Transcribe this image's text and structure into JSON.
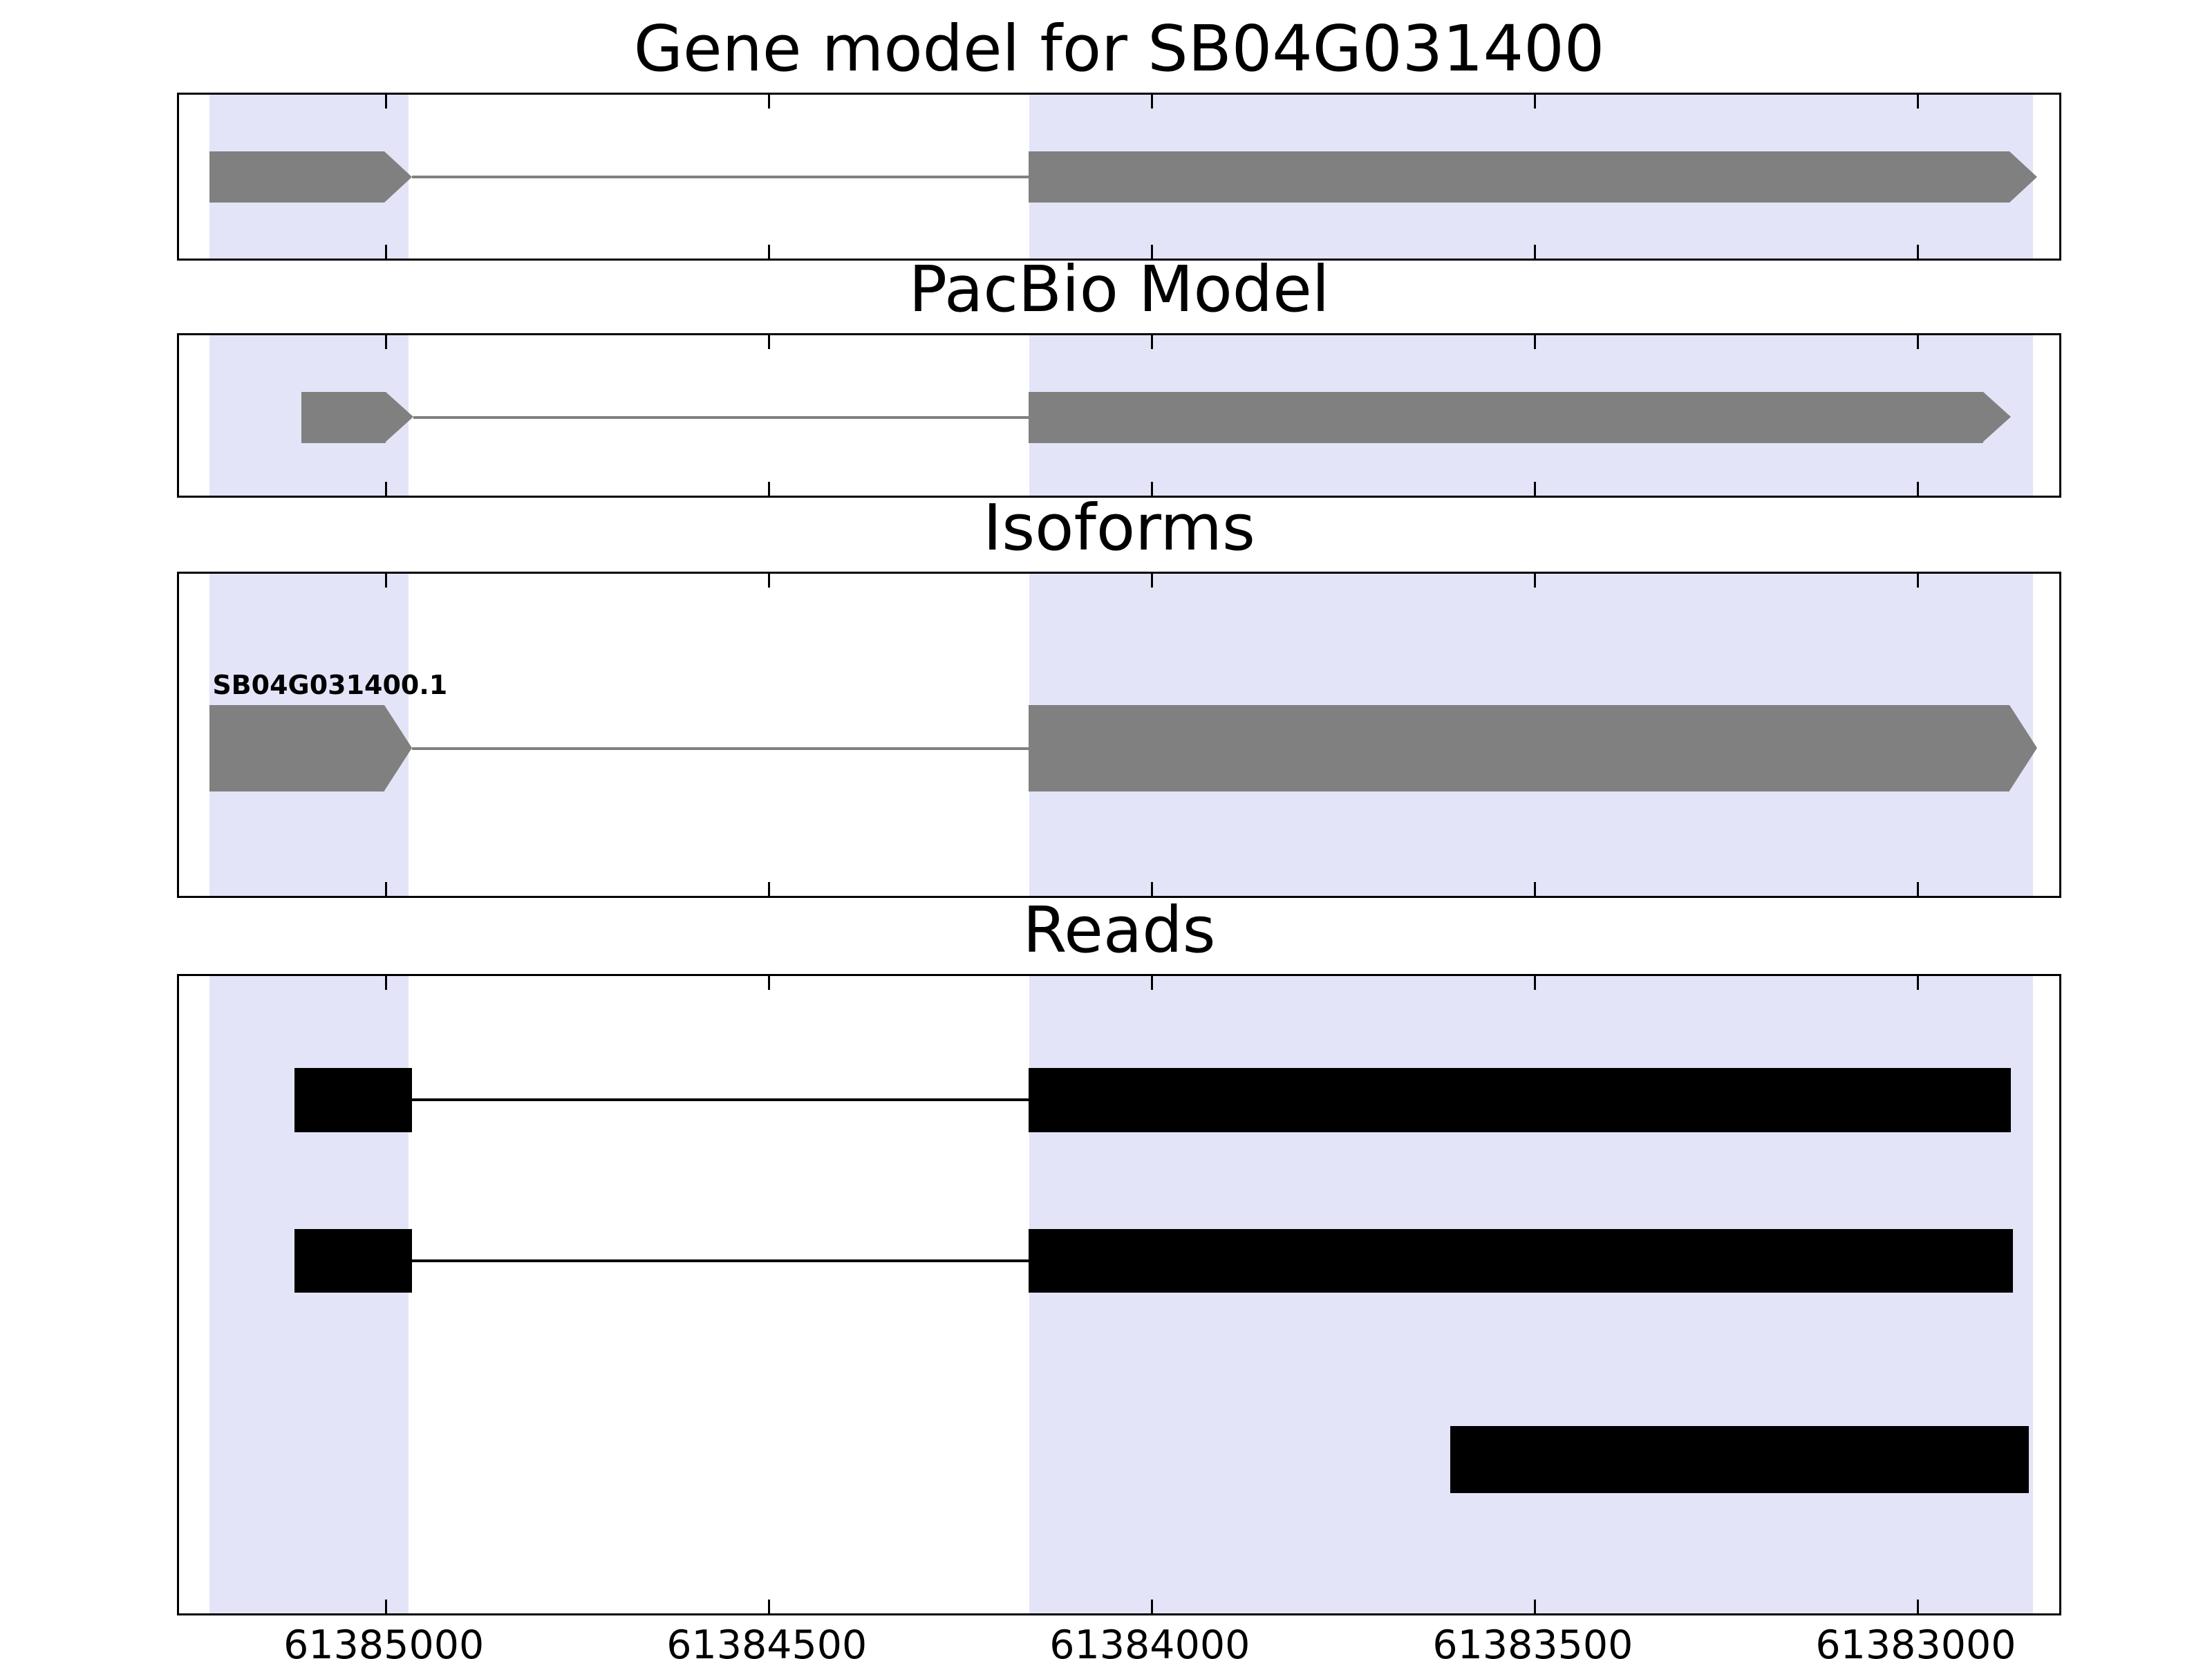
{
  "figure": {
    "background": "#ffffff"
  },
  "chart_data": {
    "type": "gene-model-tracks",
    "gene_id": "SB04G031400",
    "x_axis": {
      "left_edge_coord": 61385270,
      "right_edge_coord": 61382810,
      "reversed": true,
      "ticks": [
        {
          "value": 61385000,
          "label": "61385000"
        },
        {
          "value": 61384500,
          "label": "61384500"
        },
        {
          "value": 61384000,
          "label": "61384000"
        },
        {
          "value": 61383500,
          "label": "61383500"
        },
        {
          "value": 61383000,
          "label": "61383000"
        }
      ]
    },
    "highlight_color": "#e4e4f8",
    "highlight_regions": [
      {
        "start": 61384970,
        "end": 61385230
      },
      {
        "start": 61382850,
        "end": 61384160
      }
    ],
    "panels": [
      {
        "id": "gene-model",
        "title": "Gene model for SB04G031400",
        "features": [
          {
            "kind": "transcript",
            "color": "#808080",
            "center_frac": 0.49,
            "height_frac": 0.305,
            "exons": [
              {
                "start": 61384966,
                "end": 61385230,
                "arrow": true
              },
              {
                "start": 61382844,
                "end": 61384161,
                "arrow": true
              }
            ]
          }
        ]
      },
      {
        "id": "pacbio-model",
        "title": "PacBio Model",
        "features": [
          {
            "kind": "transcript",
            "color": "#808080",
            "center_frac": 0.5,
            "height_frac": 0.31,
            "exons": [
              {
                "start": 61384964,
                "end": 61385110,
                "arrow": true
              },
              {
                "start": 61382879,
                "end": 61384161,
                "arrow": true
              }
            ]
          }
        ]
      },
      {
        "id": "isoforms",
        "title": "Isoforms",
        "features": [
          {
            "kind": "transcript",
            "label": "SB04G031400.1",
            "color": "#808080",
            "center_frac": 0.535,
            "height_frac": 0.263,
            "exons": [
              {
                "start": 61384966,
                "end": 61385230,
                "arrow": true
              },
              {
                "start": 61382844,
                "end": 61384161,
                "arrow": true
              }
            ]
          }
        ]
      },
      {
        "id": "reads",
        "title": "Reads",
        "features": [
          {
            "kind": "read",
            "color": "#000000",
            "center_frac": 0.193,
            "height_frac": 0.1,
            "exons": [
              {
                "start": 61384966,
                "end": 61385119,
                "arrow": false
              },
              {
                "start": 61382879,
                "end": 61384161,
                "arrow": false
              }
            ]
          },
          {
            "kind": "read",
            "color": "#000000",
            "center_frac": 0.444,
            "height_frac": 0.1,
            "exons": [
              {
                "start": 61384966,
                "end": 61385119,
                "arrow": false
              },
              {
                "start": 61382876,
                "end": 61384161,
                "arrow": false
              }
            ]
          },
          {
            "kind": "read",
            "color": "#000000",
            "center_frac": 0.754,
            "height_frac": 0.105,
            "exons": [
              {
                "start": 61382855,
                "end": 61383610,
                "arrow": false
              }
            ]
          }
        ]
      }
    ]
  }
}
